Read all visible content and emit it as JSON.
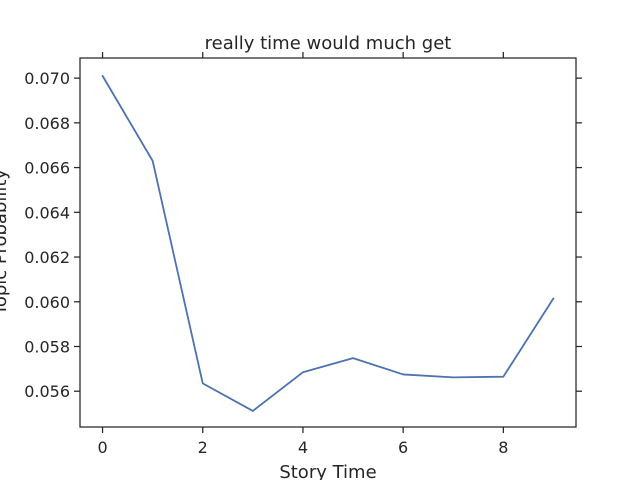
{
  "chart_data": {
    "type": "line",
    "title": "really time would much get",
    "xlabel": "Story Time",
    "ylabel": "Topic Probability",
    "x": [
      0,
      1,
      2,
      3,
      4,
      5,
      6,
      7,
      8,
      9
    ],
    "series": [
      {
        "values": [
          0.0701,
          0.0663,
          0.05635,
          0.05512,
          0.05685,
          0.05748,
          0.05675,
          0.05662,
          0.05665,
          0.06015
        ],
        "color": "#4c72b0"
      }
    ],
    "xlim": [
      -0.45,
      9.45
    ],
    "ylim": [
      0.0544,
      0.0709
    ],
    "xticks": [
      0,
      2,
      4,
      6,
      8
    ],
    "yticks": [
      0.056,
      0.058,
      0.06,
      0.062,
      0.064,
      0.066,
      0.068,
      0.07
    ],
    "ytick_labels": [
      "0.056",
      "0.058",
      "0.060",
      "0.062",
      "0.064",
      "0.066",
      "0.068",
      "0.070"
    ],
    "grid": false,
    "legend": "none"
  }
}
